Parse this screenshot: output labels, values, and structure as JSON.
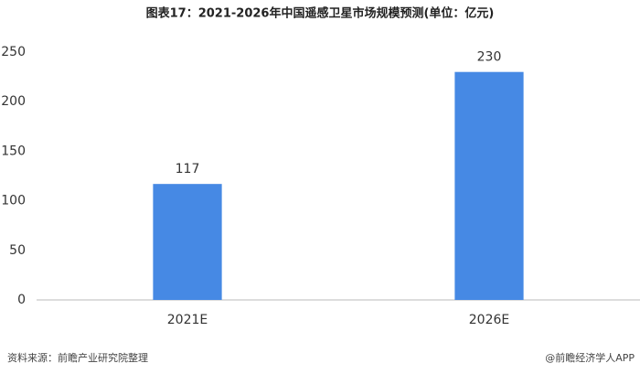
{
  "chart_data": {
    "type": "bar",
    "title": "图表17：2021-2026年中国遥感卫星市场规模预测(单位：亿元)",
    "categories": [
      "2021E",
      "2026E"
    ],
    "values": [
      117,
      230
    ],
    "color": "#4689e4",
    "ylim": [
      0,
      250
    ],
    "yticks": [
      0,
      50,
      100,
      150,
      200,
      250
    ],
    "grid": false
  },
  "footer": {
    "source": "资料来源：前瞻产业研究院整理",
    "credit": "@前瞻经济学人APP"
  }
}
